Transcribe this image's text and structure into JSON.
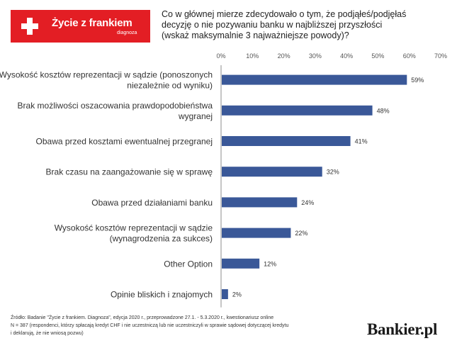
{
  "logo": {
    "brand": "Życie z frankiem",
    "sub": "diagnoza"
  },
  "question": [
    "Co w głównej mierze zdecydowało o tym, że podjąłeś/podjęłaś",
    "decyzję o nie pozywaniu banku w najbliższej przyszłości",
    "(wskaż maksymalnie 3 najważniejsze powody)?"
  ],
  "colors": {
    "bar": "#3a5898",
    "logo_red": "#e31e24",
    "axis": "#8c8c8c"
  },
  "chart_data": {
    "type": "bar",
    "orientation": "horizontal",
    "x_ticks": [
      "0%",
      "10%",
      "20%",
      "30%",
      "40%",
      "50%",
      "60%",
      "70%"
    ],
    "xlim": [
      0,
      70
    ],
    "grid": false,
    "categories": [
      [
        "Wysokość kosztów reprezentacji w sądzie (ponoszonych",
        "niezależnie od wyniku)"
      ],
      [
        "Brak możliwości oszacowania prawdopodobieństwa",
        "wygranej"
      ],
      [
        "Obawa przed kosztami ewentualnej przegranej"
      ],
      [
        "Brak czasu na zaangażowanie się w sprawę"
      ],
      [
        "Obawa przed działaniami banku"
      ],
      [
        "Wysokość kosztów reprezentacji w sądzie",
        "(wynagrodzenia za sukces)"
      ],
      [
        "Other Option"
      ],
      [
        "Opinie bliskich i znajomych"
      ]
    ],
    "values": [
      59,
      48,
      41,
      32,
      24,
      22,
      12,
      2
    ],
    "value_labels": [
      "59%",
      "48%",
      "41%",
      "32%",
      "24%",
      "22%",
      "12%",
      "2%"
    ]
  },
  "footer": [
    "Źródło: Badanie \"Życie z frankiem. Diagnoza\", edycja 2020 r., przeprowadzone 27.1. - 5.3.2020 r., kwestionariusz online",
    "N = 387  (respondenci, którzy spłacają kredyt CHF i nie uczestniczą lub nie uczestniczyli w sprawie sądowej dotyczącej kredytu",
    "i deklarują, że nie wniosą pozwu)"
  ],
  "bankier": "Bankier.pl"
}
